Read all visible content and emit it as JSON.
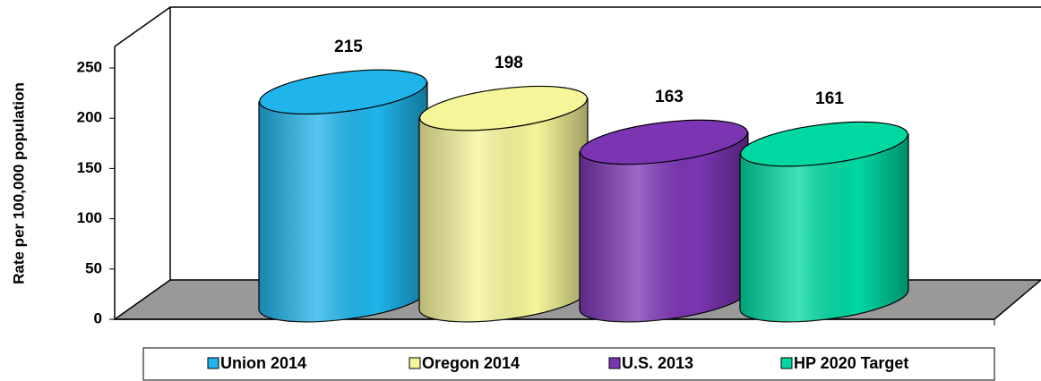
{
  "chart_data": {
    "type": "cylinder-bar",
    "y_label": "Rate per 100,000 population",
    "ylim": [
      0,
      250
    ],
    "yticks": [
      0,
      50,
      100,
      150,
      200,
      250
    ],
    "series": [
      {
        "name": "Union 2014",
        "color": "#1fb4ea",
        "values": [
          215
        ]
      },
      {
        "name": "Oregon 2014",
        "color": "#f6f59a",
        "values": [
          198
        ]
      },
      {
        "name": "U.S. 2013",
        "color": "#7b35b3",
        "values": [
          163
        ]
      },
      {
        "name": "HP 2020 Target",
        "color": "#00d8a2",
        "values": [
          161
        ]
      }
    ]
  }
}
